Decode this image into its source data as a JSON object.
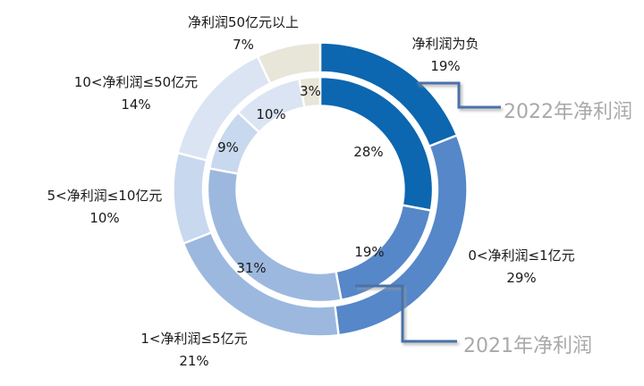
{
  "chart_data": {
    "type": "doughnut",
    "title": "",
    "categories": [
      "净利润为负",
      "0<净利润≤1亿元",
      "1<净利润≤5亿元",
      "5<净利润≤10亿元",
      "10<净利润≤50亿元",
      "净利润50亿元以上"
    ],
    "series": [
      {
        "name": "2022年净利润",
        "ring": "outer",
        "values": [
          19,
          29,
          21,
          10,
          14,
          7
        ]
      },
      {
        "name": "2021年净利润",
        "ring": "inner",
        "values": [
          28,
          19,
          31,
          9,
          10,
          3
        ]
      }
    ],
    "unit": "%",
    "start_angle_deg": 0,
    "direction": "clockwise",
    "colors": [
      "#0C66B0",
      "#5587C9",
      "#9CB8DE",
      "#C8D8EE",
      "#DBE4F3",
      "#E8E6D9"
    ],
    "slice_border_color": "#FFFFFF",
    "callout_line_color": "#4A72A8",
    "series_label_color": "#A9A9A9",
    "legend": "none"
  },
  "outer_labels": [
    {
      "line1": "净利润为负",
      "line2": "19%"
    },
    {
      "line1": "0<净利润≤1亿元",
      "line2": "29%"
    },
    {
      "line1": "1<净利润≤5亿元",
      "line2": "21%"
    },
    {
      "line1": "5<净利润≤10亿元",
      "line2": "10%"
    },
    {
      "line1": "10<净利润≤50亿元",
      "line2": "14%"
    },
    {
      "line1": "净利润50亿元以上",
      "line2": "7%"
    }
  ],
  "inner_labels": [
    "28%",
    "19%",
    "31%",
    "9%",
    "10%",
    "3%"
  ],
  "callouts": {
    "outer": "2022年净利润",
    "inner": "2021年净利润"
  }
}
